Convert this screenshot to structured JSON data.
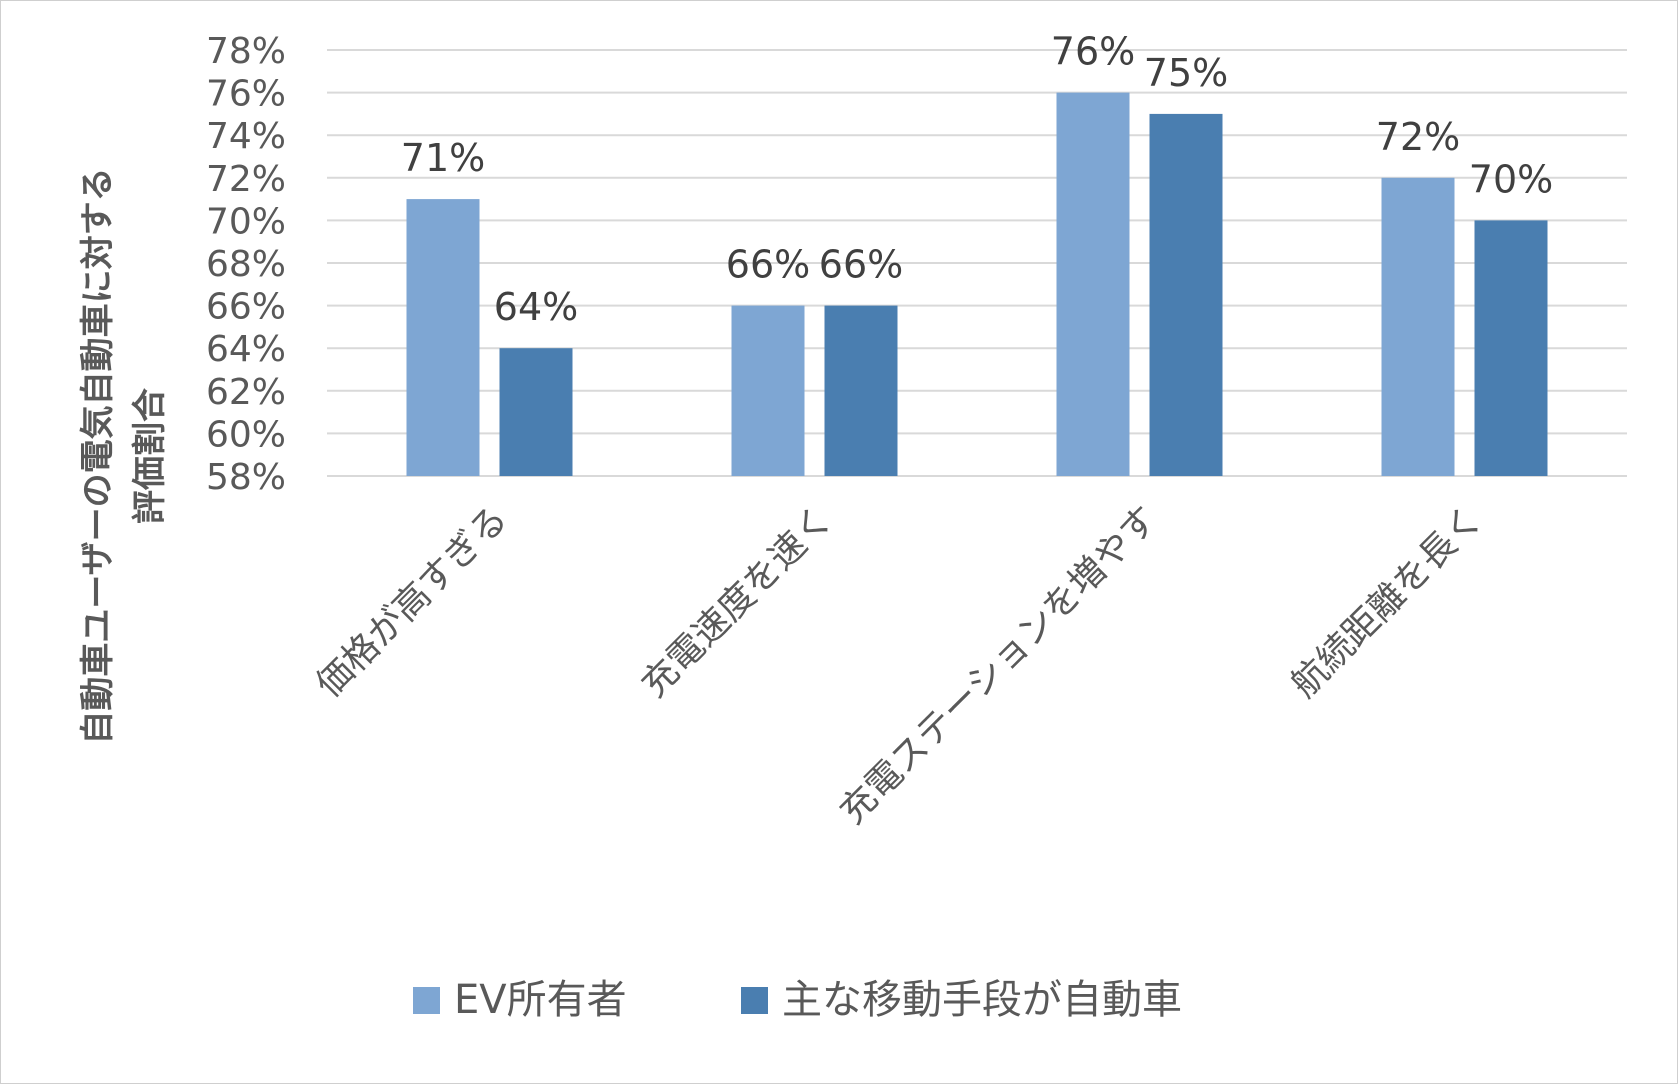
{
  "chart_data": {
    "type": "bar",
    "ylabel_lines": [
      "自動車ユーザーの電気自動車に対する",
      "評価割合"
    ],
    "xlabel": "",
    "categories": [
      "価格が高すぎる",
      "充電速度を速く",
      "充電ステーションを増やす",
      "航続距離を長く"
    ],
    "series": [
      {
        "name": "EV所有者",
        "values": [
          71,
          66,
          76,
          72
        ],
        "labels": [
          "71%",
          "66%",
          "76%",
          "72%"
        ],
        "color": "#7ea6d3"
      },
      {
        "name": "主な移動手段が自動車",
        "values": [
          64,
          66,
          75,
          70
        ],
        "labels": [
          "64%",
          "66%",
          "75%",
          "70%"
        ],
        "color": "#4a7eb0"
      }
    ],
    "ylim": [
      58,
      78
    ],
    "yticks": [
      58,
      60,
      62,
      64,
      66,
      68,
      70,
      72,
      74,
      76,
      78
    ],
    "ytick_labels": [
      "58%",
      "60%",
      "62%",
      "64%",
      "66%",
      "68%",
      "70%",
      "72%",
      "74%",
      "76%",
      "78%"
    ],
    "grid": true,
    "legend_position": "bottom"
  }
}
